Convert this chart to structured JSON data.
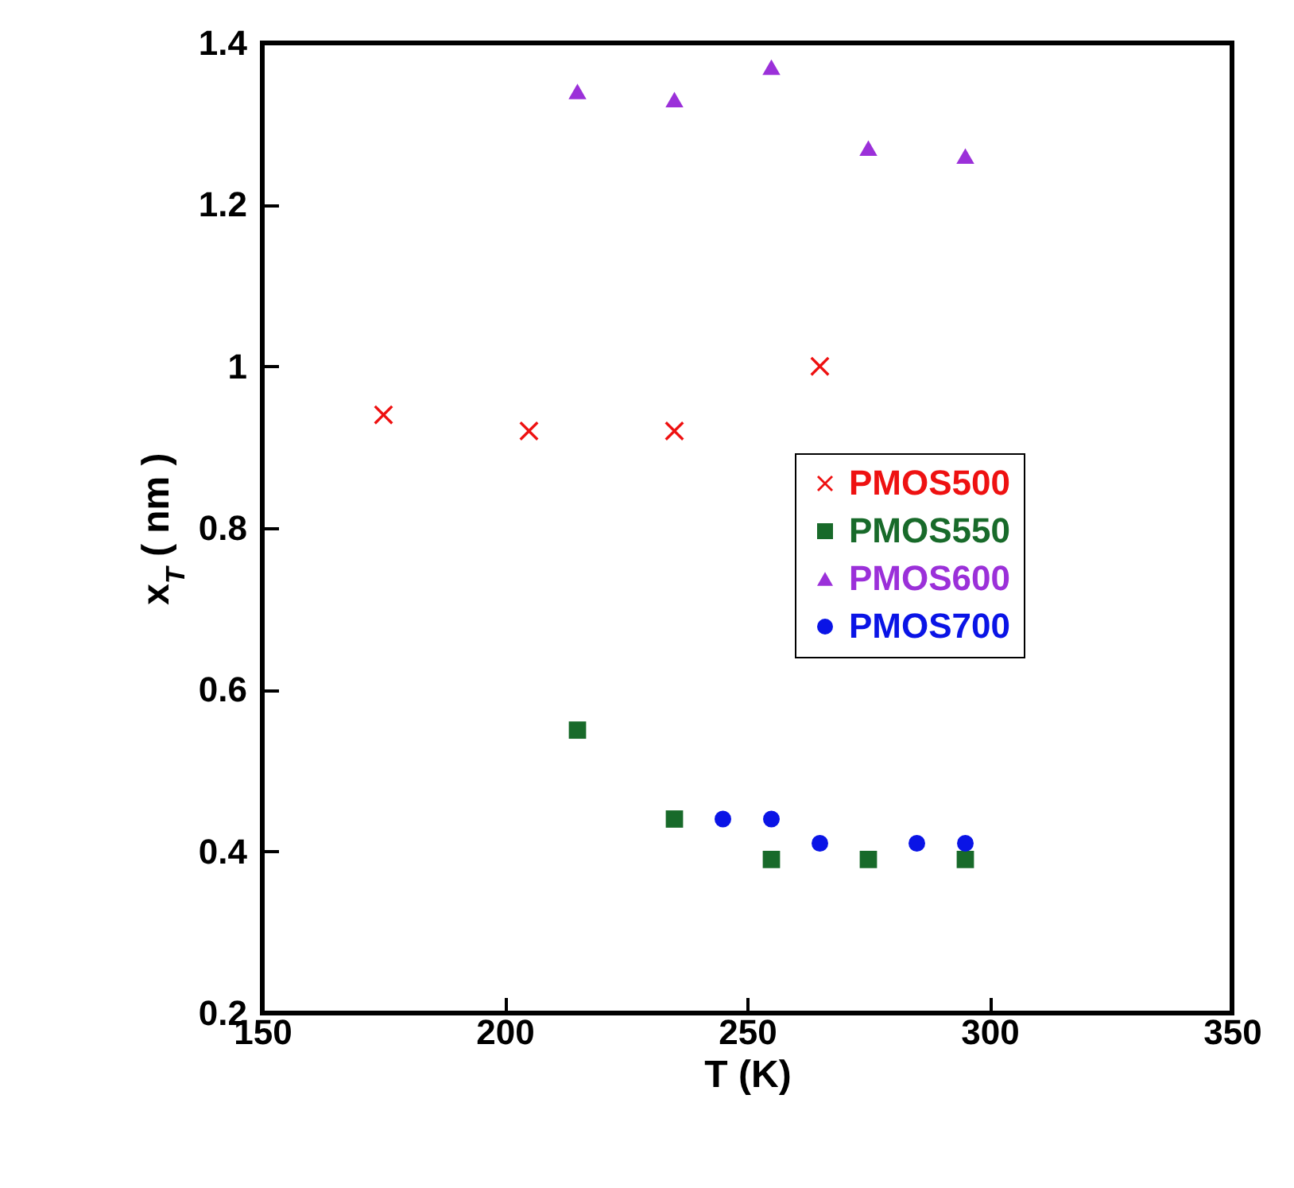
{
  "chart_data": {
    "type": "scatter",
    "xlabel": "T (K)",
    "ylabel": "x$_{T}$ ( nm )",
    "xlim": [
      150,
      350
    ],
    "xticks": [
      150,
      200,
      250,
      300,
      350
    ],
    "ylim": [
      0.2,
      1.4
    ],
    "yticks": [
      0.2,
      0.4,
      0.6,
      0.8,
      {
        "value": 1,
        "label": "1"
      },
      1.2,
      1.4
    ],
    "grid": false,
    "legend": "right",
    "series": [
      {
        "name": "PMOS500",
        "color": "#ee1111",
        "marker": "cross",
        "x": [
          175,
          205,
          235,
          265
        ],
        "values": [
          0.94,
          0.92,
          0.92,
          1.0
        ]
      },
      {
        "name": "PMOS550",
        "color": "#186a2a",
        "marker": "square",
        "x": [
          215,
          235,
          255,
          275,
          295
        ],
        "values": [
          0.55,
          0.44,
          0.39,
          0.39,
          0.39
        ]
      },
      {
        "name": "PMOS600",
        "color": "#9b30d9",
        "marker": "triangle",
        "x": [
          215,
          235,
          255,
          275,
          295
        ],
        "values": [
          1.34,
          1.33,
          1.37,
          1.27,
          1.26
        ]
      },
      {
        "name": "PMOS700",
        "color": "#0a14e6",
        "marker": "circle",
        "x": [
          245,
          255,
          265,
          285,
          295
        ],
        "values": [
          0.44,
          0.44,
          0.41,
          0.41,
          0.41
        ]
      }
    ]
  }
}
